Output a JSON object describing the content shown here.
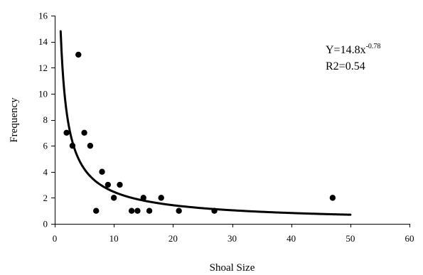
{
  "chart_data": {
    "type": "scatter",
    "title": "",
    "xlabel": "Shoal Size",
    "ylabel": "Frequency",
    "xlim": [
      0,
      60
    ],
    "ylim": [
      0,
      16
    ],
    "xticks": [
      0,
      10,
      20,
      30,
      40,
      50,
      60
    ],
    "yticks": [
      0,
      2,
      4,
      6,
      8,
      10,
      12,
      14,
      16
    ],
    "grid": false,
    "legend": "none",
    "series": [
      {
        "type": "scatter",
        "marker_color": "#000000",
        "points": [
          {
            "x": 2,
            "y": 7
          },
          {
            "x": 3,
            "y": 6
          },
          {
            "x": 4,
            "y": 13
          },
          {
            "x": 5,
            "y": 7
          },
          {
            "x": 6,
            "y": 6
          },
          {
            "x": 7,
            "y": 1
          },
          {
            "x": 8,
            "y": 4
          },
          {
            "x": 9,
            "y": 3
          },
          {
            "x": 10,
            "y": 2
          },
          {
            "x": 11,
            "y": 3
          },
          {
            "x": 13,
            "y": 1
          },
          {
            "x": 14,
            "y": 1
          },
          {
            "x": 15,
            "y": 2
          },
          {
            "x": 16,
            "y": 1
          },
          {
            "x": 18,
            "y": 2
          },
          {
            "x": 21,
            "y": 1
          },
          {
            "x": 27,
            "y": 1
          },
          {
            "x": 47,
            "y": 2
          }
        ]
      },
      {
        "type": "line",
        "line_color": "#000000",
        "function": "power",
        "coefficient": 14.8,
        "exponent": -0.78,
        "x_range": [
          1,
          50
        ]
      }
    ],
    "annotations": {
      "equation_base": "Y=14.8x",
      "equation_exponent": "-0.78",
      "r2": "R2=0.54"
    }
  }
}
